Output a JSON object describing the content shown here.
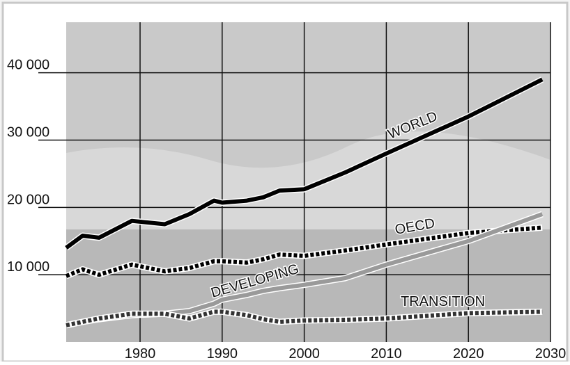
{
  "chart_data": {
    "type": "line",
    "x": [
      1971,
      1973,
      1975,
      1979,
      1983,
      1986,
      1989,
      1990,
      1993,
      1995,
      1997,
      2000,
      2005,
      2010,
      2020,
      2029
    ],
    "series": [
      {
        "name": "WORLD",
        "color": "#000000",
        "style": "solid",
        "values": [
          14000,
          15800,
          15500,
          18000,
          17500,
          19000,
          21000,
          20700,
          21000,
          21500,
          22500,
          22700,
          25200,
          28000,
          33500,
          39000
        ]
      },
      {
        "name": "OECD",
        "color": "#000000",
        "style": "dotted",
        "values": [
          9800,
          10800,
          10000,
          11500,
          10500,
          11000,
          12000,
          12000,
          11800,
          12300,
          13000,
          12800,
          13600,
          14500,
          16200,
          17000
        ]
      },
      {
        "name": "DEVELOPING",
        "color": "#9a9a9a",
        "style": "solid",
        "values": [
          2500,
          3000,
          3400,
          4000,
          4200,
          4600,
          5700,
          6300,
          7000,
          7600,
          8000,
          8500,
          9500,
          11500,
          15000,
          19000
        ]
      },
      {
        "name": "TRANSITION",
        "color": "#333333",
        "style": "dotted",
        "values": [
          2500,
          3000,
          3500,
          4200,
          4200,
          3500,
          4500,
          4500,
          4000,
          3400,
          3000,
          3200,
          3300,
          3500,
          4300,
          4500
        ]
      }
    ],
    "xlim": [
      1971,
      2030
    ],
    "ylim": [
      0,
      47500
    ],
    "xticks": [
      1980,
      1990,
      2000,
      2010,
      2020,
      2030
    ],
    "yticks": [
      {
        "value": 10000,
        "label": "10 000"
      },
      {
        "value": 20000,
        "label": "20 000"
      },
      {
        "value": 30000,
        "label": "30 000"
      },
      {
        "value": 40000,
        "label": "40 000"
      }
    ],
    "grid": true
  }
}
